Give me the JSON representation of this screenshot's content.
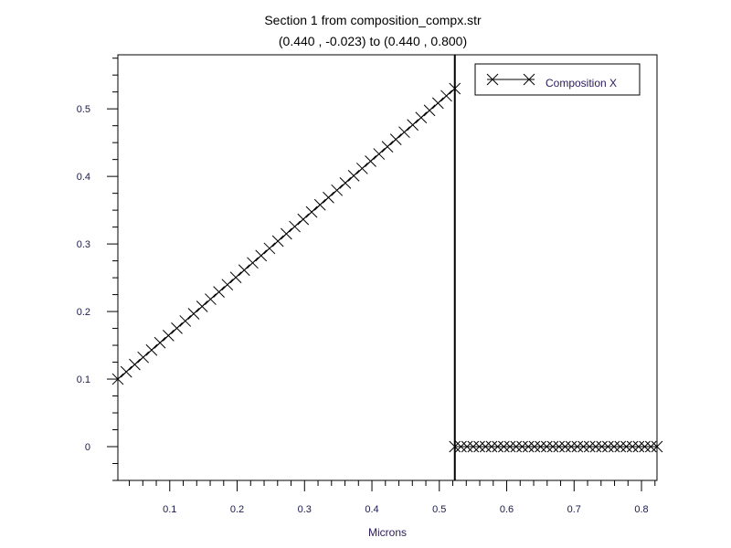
{
  "chart_data": {
    "type": "line",
    "title": "Section 1 from composition_compx.str",
    "subtitle": "(0.440 , -0.023) to (0.440 , 0.800)",
    "xlabel": "Microns",
    "ylabel": "",
    "xlim": [
      0.023,
      0.823
    ],
    "ylim": [
      -0.05,
      0.58
    ],
    "x_ticks": [
      0.1,
      0.2,
      0.3,
      0.4,
      0.5,
      0.6,
      0.7,
      0.8
    ],
    "x_tick_labels": [
      "0.1",
      "0.2",
      "0.3",
      "0.4",
      "0.5",
      "0.6",
      "0.7",
      "0.8"
    ],
    "y_ticks": [
      0,
      0.1,
      0.2,
      0.3,
      0.4,
      0.5
    ],
    "y_tick_labels": [
      "0",
      "0.1",
      "0.2",
      "0.3",
      "0.4",
      "0.5"
    ],
    "y_minor_step": 0.025,
    "x_minor_step": 0.02,
    "grid": false,
    "legend_position": "top-right",
    "marker": "x",
    "vertical_line_x": 0.523,
    "series": [
      {
        "name": "Composition X",
        "color": "#000000",
        "segments": [
          {
            "x_start": 0.023,
            "x_end": 0.523,
            "y_start": 0.1,
            "y_end": 0.53,
            "points": 41
          },
          {
            "x_start": 0.523,
            "x_end": 0.823,
            "y_start": 0.0,
            "y_end": 0.0,
            "points": 34
          }
        ]
      }
    ]
  }
}
